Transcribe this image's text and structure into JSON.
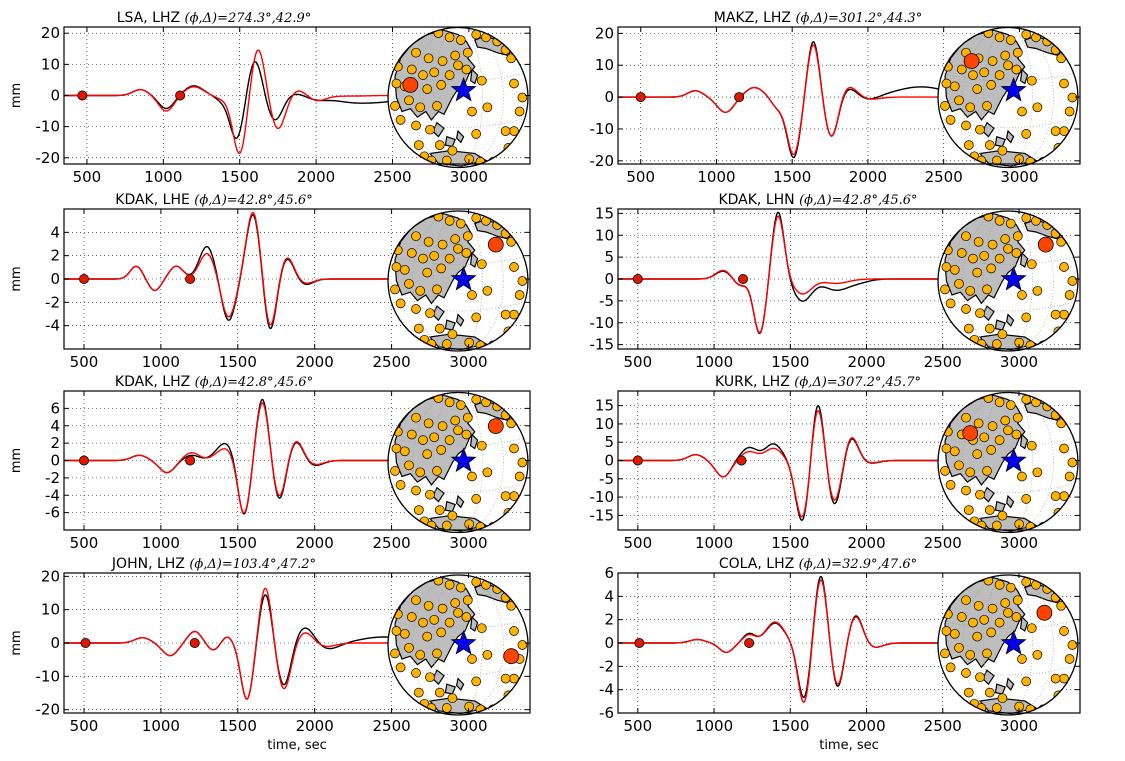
{
  "figure": {
    "colors": {
      "observed": "#000000",
      "synthetic": "#ff0000",
      "window_marker": "#dd1a00",
      "map_land": "#bdbdbd",
      "station": "#ffb300",
      "active_station": "#ff4400",
      "event": "#0000ee"
    },
    "legend": "none",
    "grid": true,
    "map_inset": "right"
  },
  "chart_data": [
    {
      "id": "p0",
      "type": "line",
      "title": "LSA, LHZ",
      "title_math": "(ϕ,Δ)=274.3°,42.9°",
      "xlabel": "",
      "ylabel": "mm",
      "xlim": [
        350,
        3400
      ],
      "ylim": [
        -22,
        22
      ],
      "xticks": [
        500,
        1000,
        1500,
        2000,
        2500,
        3000
      ],
      "yticks": [
        -20,
        -10,
        0,
        10,
        20
      ],
      "markers_x": [
        470,
        1110
      ],
      "series": [
        {
          "role": "observed",
          "waves": [
            [
              850,
              1.9,
              50
            ],
            [
              1020,
              -4.2,
              50
            ],
            [
              1200,
              3.1,
              60
            ],
            [
              1380,
              -1.4,
              40
            ],
            [
              1480,
              -14,
              45
            ],
            [
              1600,
              11.5,
              45
            ],
            [
              1730,
              -8,
              50
            ],
            [
              1870,
              0.8,
              60
            ],
            [
              2000,
              -1.0,
              70
            ],
            [
              2280,
              -2.4,
              160
            ],
            [
              2490,
              -0.8,
              90
            ]
          ]
        },
        {
          "role": "synthetic",
          "waves": [
            [
              850,
              1.9,
              50
            ],
            [
              1020,
              -5,
              50
            ],
            [
              1200,
              2.8,
              60
            ],
            [
              1380,
              -1.0,
              40
            ],
            [
              1500,
              -19,
              45
            ],
            [
              1620,
              15.5,
              45
            ],
            [
              1750,
              -11,
              50
            ],
            [
              1880,
              2.0,
              60
            ],
            [
              2000,
              -1.8,
              60
            ],
            [
              2200,
              -0.2,
              120
            ]
          ]
        }
      ],
      "map": {
        "active": [
          0.16,
          0.41
        ],
        "active_size": "large",
        "event": [
          0.54,
          0.45
        ]
      }
    },
    {
      "id": "p1",
      "type": "line",
      "title": "MAKZ, LHZ",
      "title_math": "(ϕ,Δ)=301.2°,44.3°",
      "xlabel": "",
      "ylabel": "",
      "xlim": [
        350,
        3400
      ],
      "ylim": [
        -21,
        22
      ],
      "xticks": [
        500,
        1000,
        1500,
        2000,
        2500,
        3000
      ],
      "yticks": [
        -20,
        -10,
        0,
        10,
        20
      ],
      "markers_x": [
        500,
        1150
      ],
      "series": [
        {
          "role": "observed",
          "waves": [
            [
              860,
              2.0,
              50
            ],
            [
              1060,
              -4.8,
              55
            ],
            [
              1250,
              3.0,
              60
            ],
            [
              1400,
              -3,
              40
            ],
            [
              1510,
              -19,
              45
            ],
            [
              1640,
              18,
              40
            ],
            [
              1760,
              -13,
              45
            ],
            [
              1870,
              3.0,
              60
            ],
            [
              2000,
              -1.2,
              70
            ],
            [
              2350,
              3.2,
              170
            ]
          ]
        },
        {
          "role": "synthetic",
          "waves": [
            [
              860,
              2.0,
              50
            ],
            [
              1060,
              -4.8,
              55
            ],
            [
              1250,
              3.0,
              60
            ],
            [
              1400,
              -3,
              40
            ],
            [
              1510,
              -18,
              45
            ],
            [
              1640,
              17,
              40
            ],
            [
              1760,
              -13,
              45
            ],
            [
              1870,
              3.6,
              60
            ],
            [
              2000,
              -0.8,
              70
            ]
          ]
        }
      ],
      "map": {
        "active": [
          0.24,
          0.24
        ],
        "active_size": "large",
        "event": [
          0.54,
          0.45
        ]
      }
    },
    {
      "id": "p2",
      "type": "line",
      "title": "KDAK, LHE",
      "title_math": "(ϕ,Δ)=42.8°,45.6°",
      "xlabel": "",
      "ylabel": "mm",
      "xlim": [
        370,
        3400
      ],
      "ylim": [
        -6,
        6
      ],
      "xticks": [
        500,
        1000,
        1500,
        2000,
        2500,
        3000
      ],
      "yticks": [
        -4,
        -2,
        0,
        2,
        4
      ],
      "markers_x": [
        500,
        1190
      ],
      "series": [
        {
          "role": "observed",
          "waves": [
            [
              840,
              1.1,
              40
            ],
            [
              960,
              -1.0,
              40
            ],
            [
              1100,
              1.1,
              45
            ],
            [
              1300,
              2.8,
              50
            ],
            [
              1440,
              -3.6,
              45
            ],
            [
              1600,
              5.6,
              45
            ],
            [
              1710,
              -4.6,
              40
            ],
            [
              1820,
              1.8,
              45
            ],
            [
              1940,
              -0.5,
              50
            ]
          ]
        },
        {
          "role": "synthetic",
          "waves": [
            [
              840,
              1.1,
              40
            ],
            [
              960,
              -1.0,
              40
            ],
            [
              1100,
              1.1,
              45
            ],
            [
              1300,
              2.2,
              50
            ],
            [
              1440,
              -3.3,
              45
            ],
            [
              1600,
              5.8,
              45
            ],
            [
              1710,
              -4.3,
              40
            ],
            [
              1820,
              1.9,
              45
            ],
            [
              1940,
              -0.4,
              50
            ]
          ]
        }
      ],
      "map": {
        "active": [
          0.77,
          0.24
        ],
        "active_size": "large",
        "event": [
          0.54,
          0.49
        ]
      }
    },
    {
      "id": "p3",
      "type": "line",
      "title": "KDAK, LHN",
      "title_math": "(ϕ,Δ)=42.8°,45.6°",
      "xlabel": "",
      "ylabel": "",
      "xlim": [
        370,
        3400
      ],
      "ylim": [
        -16,
        16
      ],
      "xticks": [
        500,
        1000,
        1500,
        2000,
        2500,
        3000
      ],
      "yticks": [
        -15,
        -10,
        -5,
        0,
        5,
        10,
        15
      ],
      "markers_x": [
        500,
        1190
      ],
      "series": [
        {
          "role": "observed",
          "waves": [
            [
              1060,
              1.8,
              50
            ],
            [
              1170,
              -1.5,
              40
            ],
            [
              1300,
              -12.6,
              40
            ],
            [
              1420,
              15.5,
              40
            ],
            [
              1580,
              -5,
              60
            ],
            [
              1800,
              -2.5,
              80
            ],
            [
              1950,
              -0.7,
              70
            ]
          ]
        },
        {
          "role": "synthetic",
          "waves": [
            [
              1060,
              2.0,
              50
            ],
            [
              1170,
              -1.6,
              40
            ],
            [
              1300,
              -12.4,
              40
            ],
            [
              1420,
              14.6,
              40
            ],
            [
              1580,
              -3.4,
              60
            ],
            [
              1800,
              -1.0,
              80
            ]
          ]
        }
      ],
      "map": {
        "active": [
          0.77,
          0.24
        ],
        "active_size": "large",
        "event": [
          0.54,
          0.49
        ]
      }
    },
    {
      "id": "p4",
      "type": "line",
      "title": "KDAK, LHZ",
      "title_math": "(ϕ,Δ)=42.8°,45.6°",
      "xlabel": "",
      "ylabel": "mm",
      "xlim": [
        370,
        3400
      ],
      "ylim": [
        -8,
        8
      ],
      "xticks": [
        500,
        1000,
        1500,
        2000,
        2500,
        3000
      ],
      "yticks": [
        -6,
        -4,
        -2,
        0,
        2,
        4,
        6
      ],
      "markers_x": [
        500,
        1190
      ],
      "series": [
        {
          "role": "observed",
          "waves": [
            [
              860,
              0.6,
              50
            ],
            [
              1040,
              -1.4,
              50
            ],
            [
              1200,
              0.6,
              50
            ],
            [
              1420,
              2.0,
              60
            ],
            [
              1540,
              -6.5,
              40
            ],
            [
              1660,
              7.2,
              40
            ],
            [
              1770,
              -4.6,
              40
            ],
            [
              1880,
              2.2,
              45
            ],
            [
              2000,
              -0.6,
              55
            ]
          ]
        },
        {
          "role": "synthetic",
          "waves": [
            [
              860,
              0.6,
              50
            ],
            [
              1040,
              -1.4,
              50
            ],
            [
              1200,
              0.9,
              50
            ],
            [
              1420,
              1.4,
              60
            ],
            [
              1540,
              -6.3,
              40
            ],
            [
              1660,
              6.8,
              40
            ],
            [
              1770,
              -4.3,
              40
            ],
            [
              1880,
              2.3,
              45
            ],
            [
              2000,
              -0.5,
              55
            ]
          ]
        }
      ],
      "map": {
        "active": [
          0.77,
          0.24
        ],
        "active_size": "large",
        "event": [
          0.54,
          0.49
        ]
      }
    },
    {
      "id": "p5",
      "type": "line",
      "title": "KURK, LHZ",
      "title_math": "(ϕ,Δ)=307.2°,45.7°",
      "xlabel": "",
      "ylabel": "",
      "xlim": [
        370,
        3400
      ],
      "ylim": [
        -19,
        19
      ],
      "xticks": [
        500,
        1000,
        1500,
        2000,
        2500,
        3000
      ],
      "yticks": [
        -15,
        -10,
        -5,
        0,
        5,
        10,
        15
      ],
      "markers_x": [
        500,
        1180
      ],
      "series": [
        {
          "role": "observed",
          "waves": [
            [
              880,
              1.6,
              50
            ],
            [
              1060,
              -4.5,
              50
            ],
            [
              1230,
              3.5,
              55
            ],
            [
              1390,
              4.5,
              55
            ],
            [
              1580,
              -17,
              45
            ],
            [
              1680,
              17,
              40
            ],
            [
              1790,
              -12.5,
              45
            ],
            [
              1900,
              6.5,
              45
            ],
            [
              2020,
              -0.8,
              60
            ]
          ]
        },
        {
          "role": "synthetic",
          "waves": [
            [
              880,
              1.6,
              50
            ],
            [
              1060,
              -4.5,
              50
            ],
            [
              1230,
              2.4,
              55
            ],
            [
              1390,
              3.3,
              55
            ],
            [
              1580,
              -16,
              45
            ],
            [
              1680,
              15.5,
              40
            ],
            [
              1790,
              -11.5,
              45
            ],
            [
              1900,
              6.8,
              45
            ],
            [
              2020,
              -0.7,
              60
            ]
          ]
        }
      ],
      "map": {
        "active": [
          0.23,
          0.29
        ],
        "active_size": "large",
        "event": [
          0.54,
          0.49
        ]
      }
    },
    {
      "id": "p6",
      "type": "line",
      "title": "JOHN, LHZ",
      "title_math": "(ϕ,Δ)=103.4°,47.2°",
      "xlabel": "time, sec",
      "ylabel": "mm",
      "xlim": [
        370,
        3400
      ],
      "ylim": [
        -21,
        21
      ],
      "xticks": [
        500,
        1000,
        1500,
        2000,
        2500,
        3000
      ],
      "yticks": [
        -20,
        -10,
        0,
        10,
        20
      ],
      "markers_x": [
        510,
        1220
      ],
      "series": [
        {
          "role": "observed",
          "waves": [
            [
              880,
              1.6,
              50
            ],
            [
              1060,
              -3.8,
              50
            ],
            [
              1220,
              3.5,
              45
            ],
            [
              1340,
              -2.2,
              40
            ],
            [
              1430,
              2.0,
              35
            ],
            [
              1560,
              -17,
              40
            ],
            [
              1680,
              15,
              40
            ],
            [
              1800,
              -13,
              45
            ],
            [
              1940,
              5.0,
              60
            ],
            [
              2080,
              -2.0,
              80
            ],
            [
              2450,
              1.8,
              150
            ]
          ]
        },
        {
          "role": "synthetic",
          "waves": [
            [
              880,
              1.6,
              50
            ],
            [
              1060,
              -3.8,
              50
            ],
            [
              1220,
              3.5,
              45
            ],
            [
              1340,
              -2.2,
              40
            ],
            [
              1430,
              2.0,
              35
            ],
            [
              1560,
              -17,
              40
            ],
            [
              1680,
              17,
              40
            ],
            [
              1800,
              -14,
              45
            ],
            [
              1940,
              3.4,
              55
            ],
            [
              2060,
              -1.2,
              70
            ]
          ]
        }
      ],
      "map": {
        "active": [
          0.88,
          0.58
        ],
        "active_size": "large",
        "event": [
          0.54,
          0.49
        ]
      }
    },
    {
      "id": "p7",
      "type": "line",
      "title": "COLA, LHZ",
      "title_math": "(ϕ,Δ)=32.9°,47.6°",
      "xlabel": "time, sec",
      "ylabel": "",
      "xlim": [
        370,
        3400
      ],
      "ylim": [
        -6,
        6
      ],
      "xticks": [
        500,
        1000,
        1500,
        2000,
        2500,
        3000
      ],
      "yticks": [
        -6,
        -4,
        -2,
        0,
        2,
        4,
        6
      ],
      "markers_x": [
        510,
        1230
      ],
      "series": [
        {
          "role": "observed",
          "waves": [
            [
              890,
              0.3,
              50
            ],
            [
              1080,
              -0.8,
              45
            ],
            [
              1230,
              0.8,
              40
            ],
            [
              1400,
              1.7,
              60
            ],
            [
              1590,
              -4.8,
              40
            ],
            [
              1700,
              5.9,
              40
            ],
            [
              1810,
              -3.9,
              40
            ],
            [
              1930,
              2.4,
              45
            ],
            [
              2050,
              -0.4,
              55
            ]
          ]
        },
        {
          "role": "synthetic",
          "waves": [
            [
              890,
              0.3,
              50
            ],
            [
              1080,
              -0.8,
              45
            ],
            [
              1230,
              0.7,
              40
            ],
            [
              1400,
              1.8,
              60
            ],
            [
              1590,
              -5.2,
              40
            ],
            [
              1700,
              5.6,
              40
            ],
            [
              1810,
              -3.7,
              40
            ],
            [
              1930,
              2.3,
              45
            ],
            [
              2050,
              -0.4,
              55
            ]
          ]
        }
      ],
      "map": {
        "active": [
          0.76,
          0.27
        ],
        "active_size": "large",
        "event": [
          0.54,
          0.49
        ]
      }
    }
  ]
}
